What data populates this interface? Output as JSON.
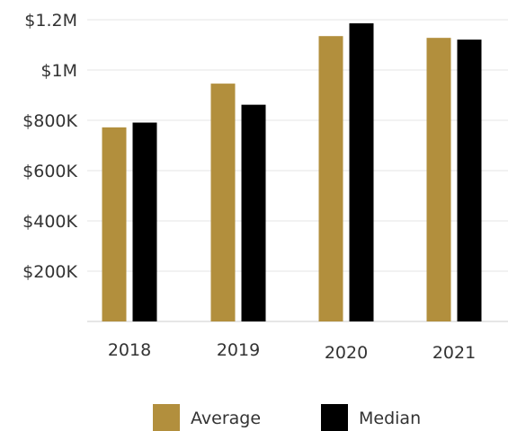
{
  "chart_data": {
    "type": "bar",
    "categories": [
      "2018",
      "2019",
      "2020",
      "2021"
    ],
    "series": [
      {
        "name": "Average",
        "color": "#b28f3d",
        "values": [
          772000,
          946000,
          1135000,
          1128000
        ]
      },
      {
        "name": "Median",
        "color": "#000000",
        "values": [
          791000,
          862000,
          1186000,
          1121000
        ]
      }
    ],
    "y_ticks": [
      {
        "value": 200000,
        "label": "$200K"
      },
      {
        "value": 400000,
        "label": "$400K"
      },
      {
        "value": 600000,
        "label": "$600K"
      },
      {
        "value": 800000,
        "label": "$800K"
      },
      {
        "value": 1000000,
        "label": "$1M"
      },
      {
        "value": 1200000,
        "label": "$1.2M"
      }
    ],
    "ylim": [
      0,
      1200000
    ],
    "grid": true,
    "legend_position": "bottom-center"
  }
}
